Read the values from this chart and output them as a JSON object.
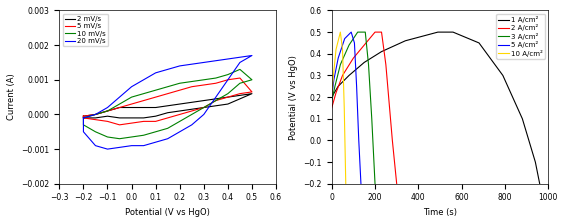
{
  "cv": {
    "xlim": [
      -0.3,
      0.6
    ],
    "ylim": [
      -0.002,
      0.003
    ],
    "xlabel": "Potential (V vs HgO)",
    "ylabel": "Current (A)",
    "xticks": [
      -0.3,
      -0.2,
      -0.1,
      0.0,
      0.1,
      0.2,
      0.3,
      0.4,
      0.5,
      0.6
    ],
    "yticks": [
      -0.002,
      -0.001,
      0.0,
      0.001,
      0.002,
      0.003
    ],
    "legend_labels": [
      "2 mV/s",
      "5 mV/s",
      "10 mV/s",
      "20 mV/s"
    ],
    "legend_colors": [
      "black",
      "red",
      "green",
      "blue"
    ],
    "curves": [
      {
        "label": "2 mV/s",
        "color": "black",
        "x_fwd": [
          -0.2,
          -0.15,
          -0.1,
          -0.05,
          0.0,
          0.05,
          0.1,
          0.15,
          0.2,
          0.25,
          0.3,
          0.35,
          0.4,
          0.45,
          0.5
        ],
        "y_fwd": [
          -5e-05,
          0.0,
          0.0001,
          0.0002,
          0.0002,
          0.0002,
          0.0002,
          0.00025,
          0.0003,
          0.00035,
          0.0004,
          0.00045,
          0.0005,
          0.00055,
          0.0006
        ],
        "x_rev": [
          0.5,
          0.45,
          0.4,
          0.35,
          0.3,
          0.25,
          0.2,
          0.15,
          0.1,
          0.05,
          0.0,
          -0.05,
          -0.1,
          -0.15,
          -0.2
        ],
        "y_rev": [
          0.0006,
          0.00045,
          0.0003,
          0.00025,
          0.0002,
          0.00015,
          0.0001,
          5e-05,
          -5e-05,
          -0.0001,
          -0.0001,
          -0.0001,
          -5e-05,
          -0.0001,
          -0.0001
        ]
      },
      {
        "label": "5 mV/s",
        "color": "red",
        "x_fwd": [
          -0.2,
          -0.15,
          -0.1,
          -0.05,
          0.0,
          0.05,
          0.1,
          0.15,
          0.2,
          0.25,
          0.3,
          0.35,
          0.4,
          0.45,
          0.5
        ],
        "y_fwd": [
          -5e-05,
          0.0,
          0.0001,
          0.0002,
          0.0003,
          0.0004,
          0.0005,
          0.0006,
          0.0007,
          0.0008,
          0.00085,
          0.0009,
          0.001,
          0.00105,
          0.00065
        ],
        "x_rev": [
          0.5,
          0.45,
          0.4,
          0.35,
          0.3,
          0.25,
          0.2,
          0.15,
          0.1,
          0.05,
          0.0,
          -0.05,
          -0.1,
          -0.15,
          -0.2
        ],
        "y_rev": [
          0.00065,
          0.0006,
          0.0005,
          0.0004,
          0.0002,
          0.0001,
          0.0,
          -0.0001,
          -0.0002,
          -0.0002,
          -0.00025,
          -0.0003,
          -0.0002,
          -0.00015,
          -0.0001
        ]
      },
      {
        "label": "10 mV/s",
        "color": "green",
        "x_fwd": [
          -0.2,
          -0.15,
          -0.1,
          -0.05,
          0.0,
          0.05,
          0.1,
          0.15,
          0.2,
          0.25,
          0.3,
          0.35,
          0.4,
          0.45,
          0.5
        ],
        "y_fwd": [
          -0.0001,
          0.0,
          0.0001,
          0.0003,
          0.0005,
          0.0006,
          0.0007,
          0.0008,
          0.0009,
          0.00095,
          0.001,
          0.00105,
          0.00115,
          0.0013,
          0.001
        ],
        "x_rev": [
          0.5,
          0.45,
          0.4,
          0.35,
          0.3,
          0.25,
          0.2,
          0.15,
          0.1,
          0.05,
          0.0,
          -0.05,
          -0.1,
          -0.15,
          -0.2
        ],
        "y_rev": [
          0.001,
          0.0009,
          0.0006,
          0.0004,
          0.0002,
          0.0,
          -0.0002,
          -0.0004,
          -0.0005,
          -0.0006,
          -0.00065,
          -0.0007,
          -0.00065,
          -0.0005,
          -0.0003
        ]
      },
      {
        "label": "20 mV/s",
        "color": "blue",
        "x_fwd": [
          -0.2,
          -0.15,
          -0.1,
          -0.05,
          0.0,
          0.05,
          0.1,
          0.15,
          0.2,
          0.25,
          0.3,
          0.35,
          0.4,
          0.45,
          0.5
        ],
        "y_fwd": [
          -0.0001,
          0.0,
          0.0002,
          0.0005,
          0.0008,
          0.001,
          0.0012,
          0.0013,
          0.0014,
          0.00145,
          0.0015,
          0.00155,
          0.0016,
          0.00165,
          0.0017
        ],
        "x_rev": [
          0.5,
          0.45,
          0.4,
          0.35,
          0.3,
          0.25,
          0.2,
          0.15,
          0.1,
          0.05,
          0.0,
          -0.05,
          -0.1,
          -0.15,
          -0.2
        ],
        "y_rev": [
          0.0017,
          0.0015,
          0.001,
          0.0005,
          0.0,
          -0.0003,
          -0.0005,
          -0.0007,
          -0.0008,
          -0.0009,
          -0.0009,
          -0.00095,
          -0.001,
          -0.0009,
          -0.0005
        ]
      }
    ]
  },
  "gcd": {
    "xlim": [
      0,
      1000
    ],
    "ylim": [
      -0.2,
      0.6
    ],
    "xlabel": "Time (s)",
    "ylabel": "Potential (V vs HgO)",
    "xticks": [
      0,
      200,
      400,
      600,
      800,
      1000
    ],
    "yticks": [
      -0.2,
      -0.1,
      0.0,
      0.1,
      0.2,
      0.3,
      0.4,
      0.5,
      0.6
    ],
    "legend_labels": [
      "1 A/cm²",
      "2 A/cm²",
      "3 A/cm²",
      "5 A/cm²",
      "10 A/cm²"
    ],
    "legend_colors": [
      "black",
      "red",
      "green",
      "blue",
      "gold"
    ],
    "curves": [
      {
        "label": "1 A/cm²",
        "color": "black",
        "x": [
          0,
          30,
          80,
          150,
          230,
          340,
          490,
          560,
          680,
          790,
          880,
          940,
          960
        ],
        "y": [
          0.2,
          0.25,
          0.3,
          0.36,
          0.41,
          0.46,
          0.5,
          0.5,
          0.45,
          0.3,
          0.1,
          -0.1,
          -0.2
        ]
      },
      {
        "label": "2 A/cm²",
        "color": "red",
        "x": [
          0,
          20,
          50,
          100,
          150,
          200,
          230,
          250,
          280,
          300
        ],
        "y": [
          0.15,
          0.22,
          0.3,
          0.38,
          0.44,
          0.5,
          0.5,
          0.35,
          0.0,
          -0.2
        ]
      },
      {
        "label": "3 A/cm²",
        "color": "green",
        "x": [
          0,
          15,
          40,
          80,
          120,
          155,
          170,
          185,
          200
        ],
        "y": [
          0.18,
          0.25,
          0.35,
          0.44,
          0.5,
          0.5,
          0.35,
          0.1,
          -0.2
        ]
      },
      {
        "label": "5 A/cm²",
        "color": "blue",
        "x": [
          0,
          10,
          30,
          60,
          90,
          105,
          115,
          125,
          135
        ],
        "y": [
          0.2,
          0.28,
          0.38,
          0.47,
          0.5,
          0.45,
          0.25,
          0.0,
          -0.2
        ]
      },
      {
        "label": "10 A/cm²",
        "color": "gold",
        "x": [
          0,
          8,
          20,
          40,
          50,
          58,
          65
        ],
        "y": [
          0.2,
          0.3,
          0.42,
          0.5,
          0.42,
          0.15,
          -0.2
        ]
      }
    ]
  }
}
